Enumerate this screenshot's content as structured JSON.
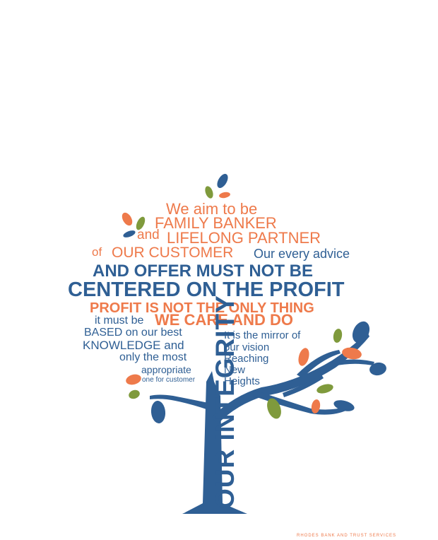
{
  "colors": {
    "orange": "#ee7a4b",
    "blue": "#2f5f94",
    "green": "#7f9a3c",
    "background": "#ffffff"
  },
  "lines": {
    "l1": "We aim to be",
    "l2": "FAMILY BANKER",
    "l3a": "and",
    "l3b": "LIFELONG PARTNER",
    "l4a": "of",
    "l4b": "OUR CUSTOMER",
    "l4c": "Our every advice",
    "l5": "AND OFFER MUST NOT BE",
    "l6": "CENTERED ON THE PROFIT",
    "l7": "PROFIT IS NOT THE ONLY THING",
    "l8a": "it must be",
    "l8b": "WE CARE AND DO"
  },
  "left_column": [
    "BASED on our best",
    "KNOWLEDGE and",
    "only the most",
    "appropriate",
    "one for customer"
  ],
  "right_column": [
    "It is the mirror of",
    "our vision",
    "Reaching",
    "New",
    "Heights"
  ],
  "trunk_text": "OUR INTEGRITY",
  "footer": "RHODES BANK AND TRUST SERVICES",
  "icons": [
    "tree-trunk-icon",
    "leaf-icon"
  ]
}
